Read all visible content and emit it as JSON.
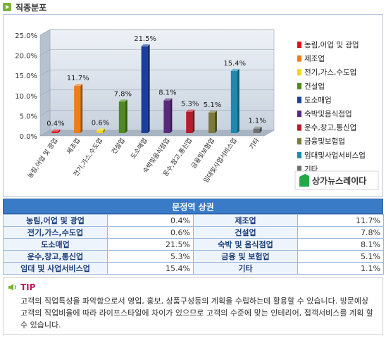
{
  "header": {
    "title": "직종분포"
  },
  "chart_data": {
    "type": "bar",
    "categories": [
      "농림,어업 및 광업",
      "제조업",
      "전기,가스,수도업",
      "건설업",
      "도소매업",
      "숙박및음식점업",
      "운수,창고,통신업",
      "금융및보험업",
      "임대및사업서비스업",
      "기타"
    ],
    "values": [
      0.4,
      11.7,
      0.6,
      7.8,
      21.5,
      8.1,
      5.3,
      5.1,
      15.4,
      1.1
    ],
    "value_labels": [
      "0.4%",
      "11.7%",
      "0.6%",
      "7.8%",
      "21.5%",
      "8.1%",
      "5.3%",
      "5.1%",
      "15.4%",
      "1.1%"
    ],
    "colors": [
      "#e0101a",
      "#f07d16",
      "#f2d51c",
      "#4e8a1e",
      "#1a3f9a",
      "#5a2a7a",
      "#b81c2a",
      "#7a7a3a",
      "#1a8ab0",
      "#707070"
    ],
    "ylim": [
      0,
      25
    ],
    "yticks": [
      "0.0%",
      "5.0%",
      "10.0%",
      "15.0%",
      "20.0%",
      "25.0%"
    ],
    "legend": {
      "placement": "right",
      "entries": [
        "농림,어업 및 광업",
        "제조업",
        "전기,가스,수도업",
        "건설업",
        "도소매업",
        "숙박및음식점업",
        "운수,창고,통신업",
        "금융및보험업",
        "임대및사업서비스업",
        "기타"
      ]
    },
    "logo_text": "상가뉴스레이다",
    "grid": true
  },
  "table": {
    "title": "문정역 상권",
    "rows": [
      [
        {
          "label": "농림,어업 및 광업",
          "value": "0.4%"
        },
        {
          "label": "제조업",
          "value": "11.7%"
        }
      ],
      [
        {
          "label": "전기,가스,수도업",
          "value": "0.6%"
        },
        {
          "label": "건설업",
          "value": "7.8%"
        }
      ],
      [
        {
          "label": "도소매업",
          "value": "21.5%"
        },
        {
          "label": "숙박 및 음식점업",
          "value": "8.1%"
        }
      ],
      [
        {
          "label": "운수,창고,통신업",
          "value": "5.3%"
        },
        {
          "label": "금융 및 보험업",
          "value": "5.1%"
        }
      ],
      [
        {
          "label": "임대 및 사업서비스업",
          "value": "15.4%"
        },
        {
          "label": "기타",
          "value": "1.1%"
        }
      ]
    ]
  },
  "tip": {
    "label": "TIP",
    "text": "고객의 직업특성을 파악함으로서 영업, 홍보, 상품구성등의 계획을 수립하는데 활용할 수 있습니다. 방문예상 고객의 직업비율에 따라 라이프스타일에 차이가 있으므로 고객의 수준에 맞는 인테리어, 접객서비스를 계획 할 수 있습니다."
  }
}
